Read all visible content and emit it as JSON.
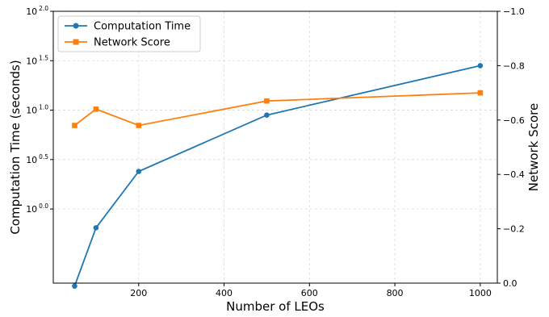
{
  "chart_data": {
    "type": "line",
    "xlabel": "Number of LEOs",
    "ylabel_left": "Computation Time (seconds)",
    "ylabel_right": "Network Score",
    "x_ticks": [
      "200",
      "400",
      "600",
      "800",
      "1000"
    ],
    "y_left_ticks": [
      {
        "base": "10",
        "exp": "0.0"
      },
      {
        "base": "10",
        "exp": "0.5"
      },
      {
        "base": "10",
        "exp": "1.0"
      },
      {
        "base": "10",
        "exp": "1.5"
      },
      {
        "base": "10",
        "exp": "2.0"
      }
    ],
    "y_right_ticks": [
      "0.0",
      "−0.2",
      "−0.4",
      "−0.6",
      "−0.8",
      "−1.0"
    ],
    "xlim": [
      0,
      1040
    ],
    "y_left_scale": "exponent (log10)",
    "y_left_exponent_range": [
      -0.75,
      2.0
    ],
    "y_right_range": [
      0.0,
      -1.0
    ],
    "grid": true,
    "legend_position": "top-left",
    "series": [
      {
        "name": "Computation Time",
        "axis": "left",
        "color": "#1f77b4",
        "marker": "circle",
        "x": [
          50,
          100,
          200,
          500,
          1000
        ],
        "y_exponent": [
          -0.78,
          -0.19,
          0.38,
          0.95,
          1.45
        ]
      },
      {
        "name": "Network Score",
        "axis": "right",
        "color": "#ff7f0e",
        "marker": "square",
        "x": [
          50,
          100,
          200,
          500,
          1000
        ],
        "y": [
          -0.58,
          -0.64,
          -0.58,
          -0.67,
          -0.7
        ]
      }
    ]
  }
}
